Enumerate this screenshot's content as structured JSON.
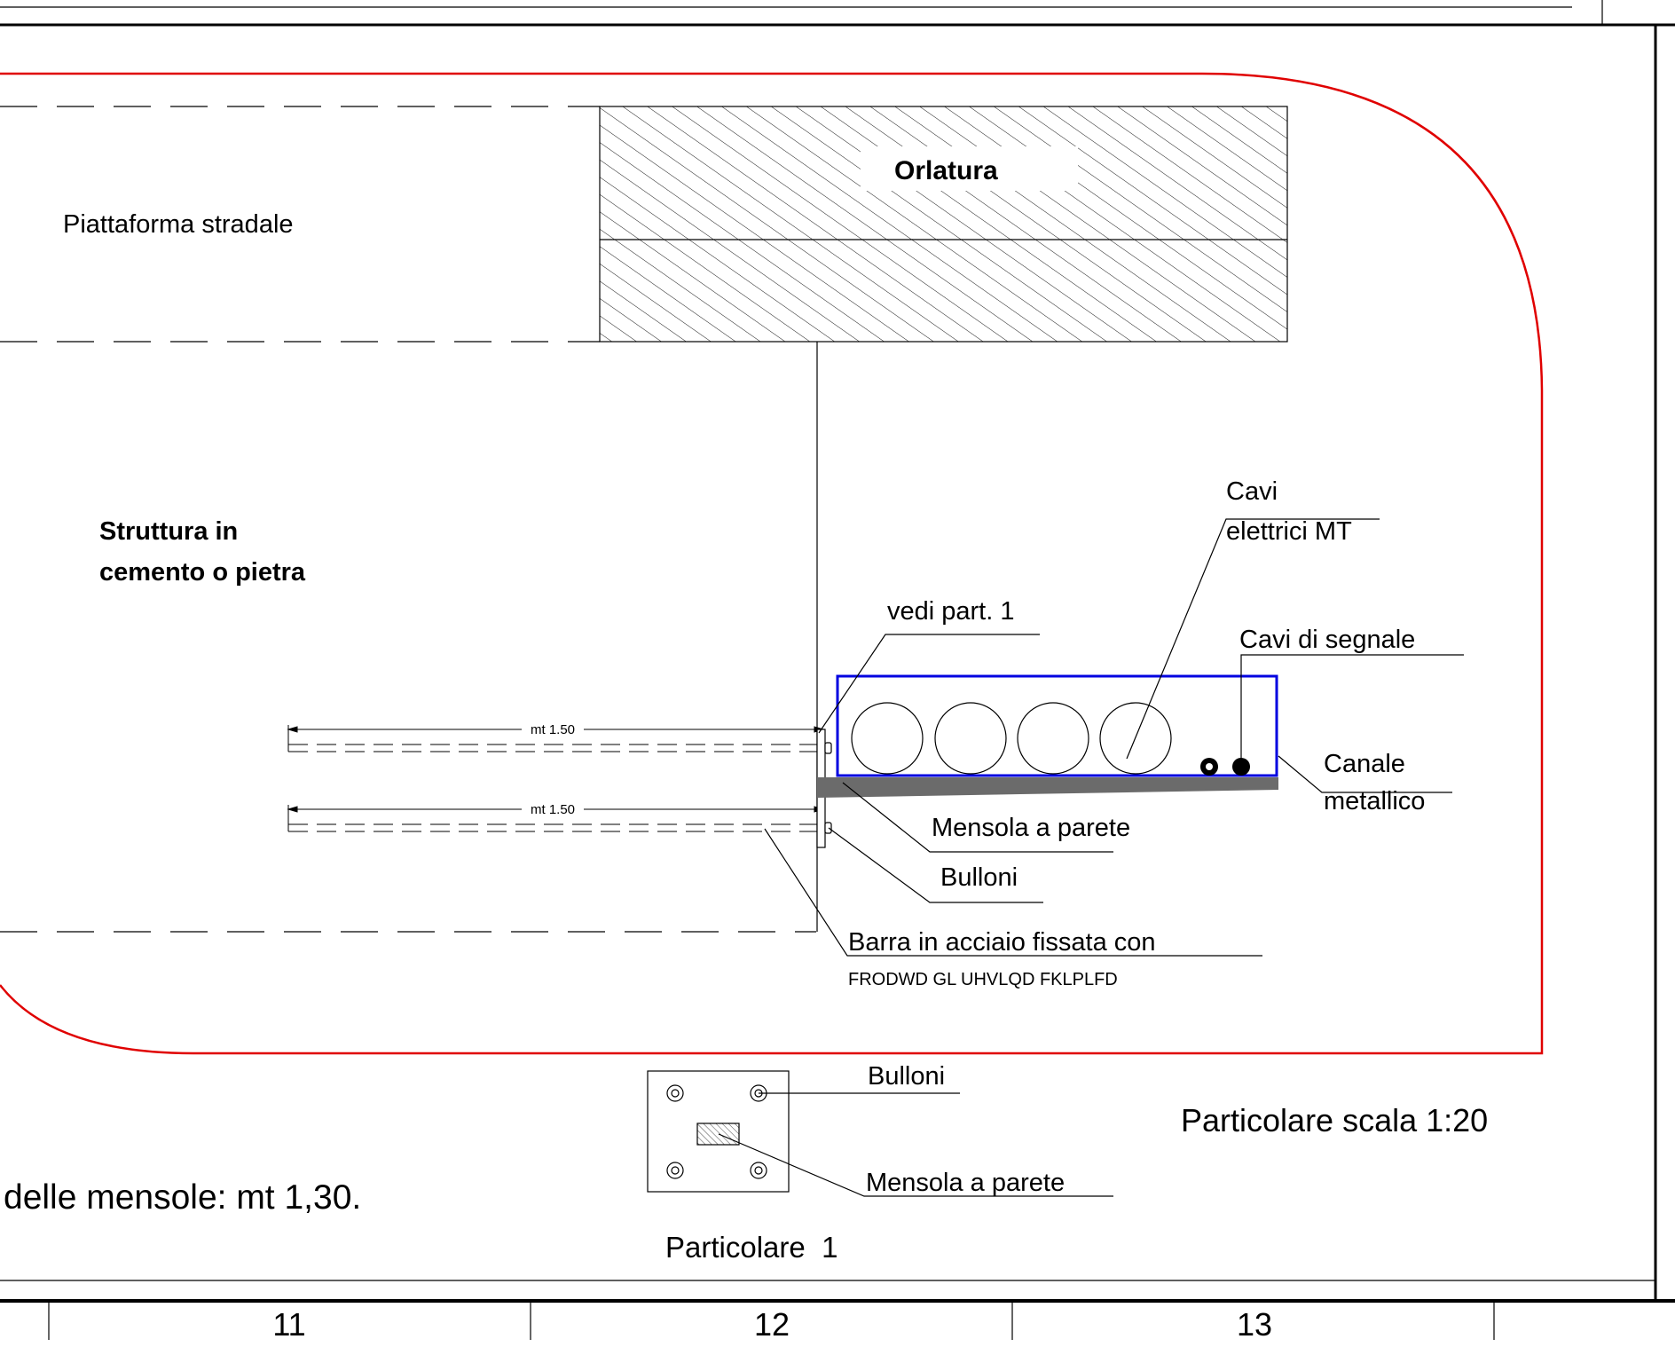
{
  "labels": {
    "orlatura": "Orlatura",
    "piattaforma": "Piattaforma stradale",
    "struttura_line1": "Struttura in",
    "struttura_line2": "cemento o pietra",
    "cavi_mt_line1": "Cavi",
    "cavi_mt_line2": "elettrici MT",
    "vedi_part": "vedi part. 1",
    "cavi_segnale": "Cavi di segnale",
    "canale_line1": "Canale",
    "canale_line2": "metallico",
    "mensola_parete": "Mensola a parete",
    "bulloni": "Bulloni",
    "barra_line1": "Barra in acciaio fissata con",
    "barra_line2": "FRODWD GL UHVLQD FKLPLFD",
    "dim_upper": "mt 1.50",
    "dim_lower": "mt 1.50"
  },
  "detail": {
    "bulloni": "Bulloni",
    "mensola_parete": "Mensola a parete",
    "title": "Particolare  1"
  },
  "notes": {
    "scala": "Particolare scala 1:20",
    "mensole": "delle mensole: mt 1,30."
  },
  "border": {
    "zones": [
      "11",
      "12",
      "13"
    ]
  },
  "colors": {
    "outline_red": "#e00000",
    "channel_blue": "#0000e0",
    "bracket_gray": "#6b6b6b",
    "ink": "#000000"
  }
}
